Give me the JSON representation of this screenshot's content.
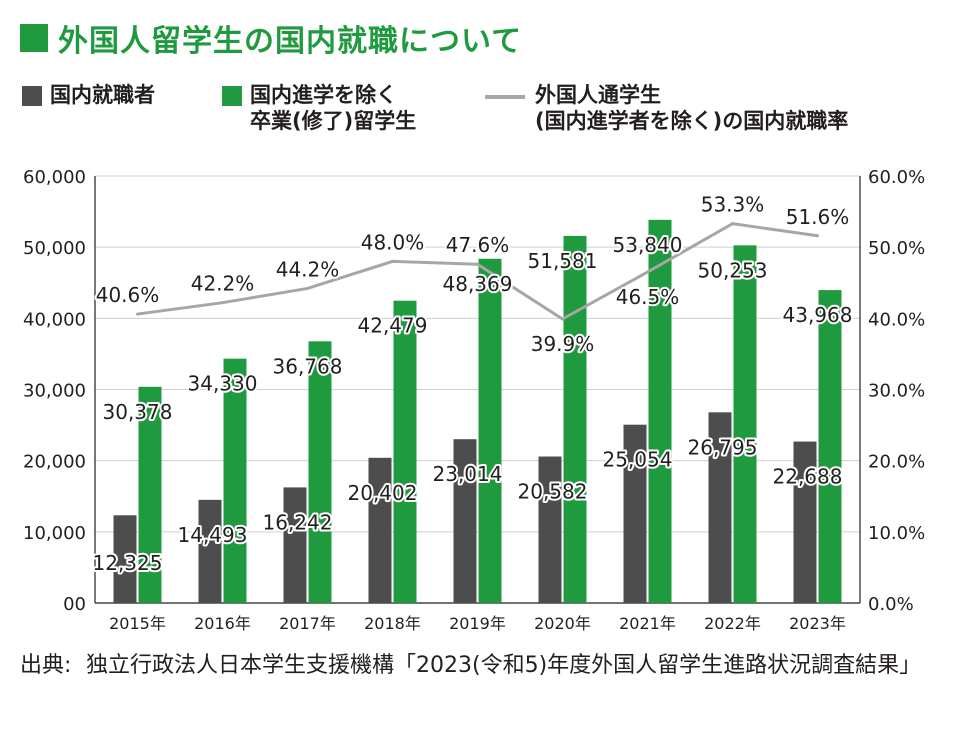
{
  "page": {
    "title": "外国人留学生の国内就職について",
    "source_label": "出典:",
    "source_text": "独立行政法人日本学生支援機構「2023(令和5)年度外国人留学生進路状況調査結果」"
  },
  "legend": {
    "series1": "国内就職者",
    "series2_line1": "国内進学を除く",
    "series2_line2": "卒業(修了)留学生",
    "series3_line1": "外国人通学生",
    "series3_line2": "(国内進学者を除く)の国内就職率"
  },
  "colors": {
    "employed": "#4d4d4d",
    "graduates": "#1f9a3e",
    "rate": "#a6a6a6",
    "grid": "#cfcfcf"
  },
  "chart_data": {
    "type": "bar+line",
    "categories": [
      "2015年",
      "2016年",
      "2017年",
      "2018年",
      "2019年",
      "2020年",
      "2021年",
      "2022年",
      "2023年"
    ],
    "series": [
      {
        "name": "国内就職者",
        "axis": "left",
        "values": [
          12325,
          14493,
          16242,
          20402,
          23014,
          20582,
          25054,
          26795,
          22688
        ],
        "labels": [
          "12,325",
          "14,493",
          "16,242",
          "20,402",
          "23,014",
          "20,582",
          "25,054",
          "26,795",
          "22,688"
        ]
      },
      {
        "name": "国内進学を除く卒業(修了)留学生",
        "axis": "left",
        "values": [
          30378,
          34330,
          36768,
          42479,
          48369,
          51581,
          53840,
          50253,
          43968
        ],
        "labels": [
          "30,378",
          "34,330",
          "36,768",
          "42,479",
          "48,369",
          "51,581",
          "53,840",
          "50,253",
          "43,968"
        ]
      },
      {
        "name": "外国人通学生(国内進学者を除く)の国内就職率",
        "axis": "right",
        "type": "line",
        "values": [
          40.6,
          42.2,
          44.2,
          48.0,
          47.6,
          39.9,
          46.5,
          53.3,
          51.6
        ],
        "labels": [
          "40.6%",
          "42.2%",
          "44.2%",
          "48.0%",
          "47.6%",
          "39.9%",
          "46.5%",
          "53.3%",
          "51.6%"
        ]
      }
    ],
    "ylim_left": [
      0,
      60000
    ],
    "ylim_right": [
      0,
      60
    ],
    "left_ticks": [
      0,
      10000,
      20000,
      30000,
      40000,
      50000,
      60000
    ],
    "left_tick_labels": [
      "00",
      "10,000",
      "20,000",
      "30,000",
      "40,000",
      "50,000",
      "60,000"
    ],
    "right_tick_labels": [
      "0.0%",
      "10.0%",
      "20.0%",
      "30.0%",
      "40.0%",
      "50.0%",
      "60.0%"
    ],
    "grid": true
  }
}
